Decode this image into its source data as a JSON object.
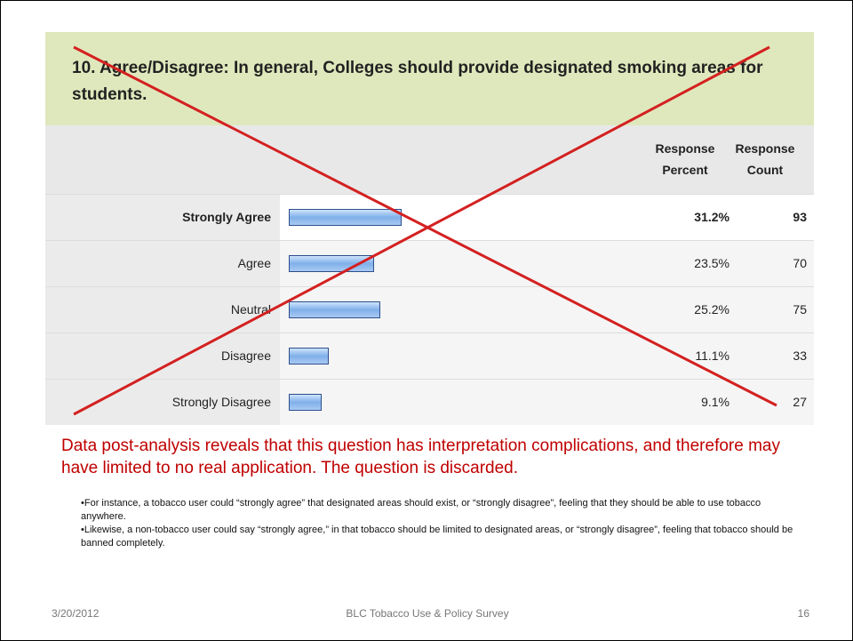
{
  "question": {
    "title": "10. Agree/Disagree: In general, Colleges should provide designated smoking areas for students.",
    "columns": [
      "Response Percent",
      "Response Count"
    ],
    "rows": [
      {
        "label": "Strongly Agree",
        "percent": 31.2,
        "percent_label": "31.2%",
        "count": 93
      },
      {
        "label": "Agree",
        "percent": 23.5,
        "percent_label": "23.5%",
        "count": 70
      },
      {
        "label": "Neutral",
        "percent": 25.2,
        "percent_label": "25.2%",
        "count": 75
      },
      {
        "label": "Disagree",
        "percent": 11.1,
        "percent_label": "11.1%",
        "count": 33
      },
      {
        "label": "Strongly Disagree",
        "percent": 9.1,
        "percent_label": "9.1%",
        "count": 27
      }
    ]
  },
  "note": "Data post-analysis reveals that this question has interpretation complications, and therefore may have limited to no real application.  The question is discarded.",
  "bullets": [
    "•For instance, a tobacco user could “strongly agree” that designated areas should exist, or “strongly disagree”, feeling that they should be able to use tobacco anywhere.",
    "•Likewise, a non-tobacco user could say “strongly agree,” in that tobacco should be limited to designated areas, or “strongly disagree”, feeling that tobacco should be banned completely."
  ],
  "footer": {
    "date": "3/20/2012",
    "center": "BLC Tobacco Use & Policy Survey",
    "page": "16"
  }
}
